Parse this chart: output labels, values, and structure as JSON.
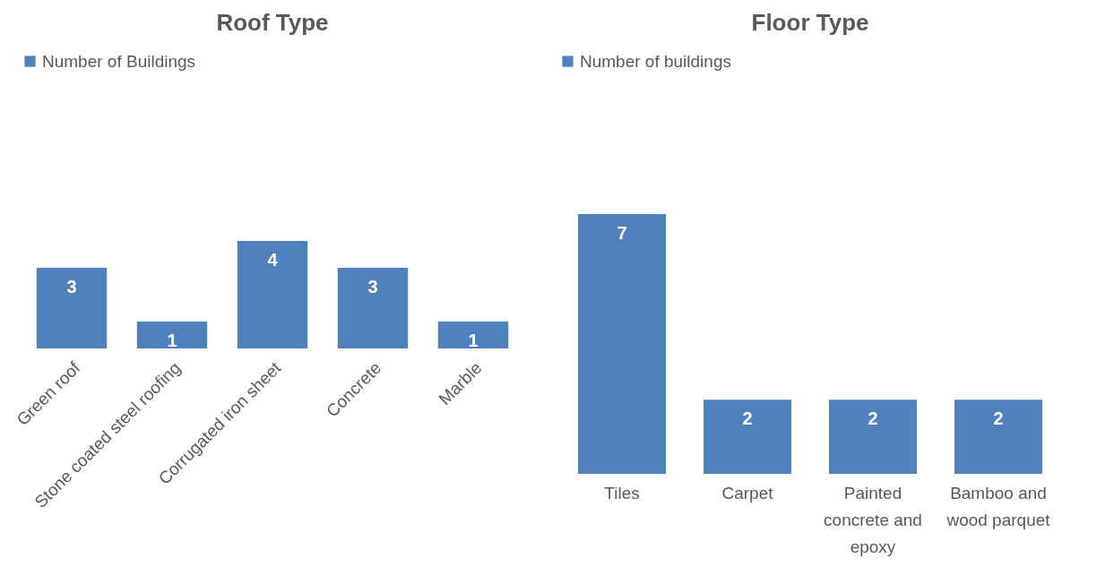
{
  "chart_data": [
    {
      "type": "bar",
      "title": "Roof Type",
      "categories": [
        "Green roof",
        "Stone coated steel roofing",
        "Corrugated iron sheet",
        "Concrete",
        "Marble"
      ],
      "series": [
        {
          "name": "Number of Buildings",
          "color": "#4f81bd",
          "values": [
            3,
            1,
            4,
            3,
            1
          ]
        }
      ],
      "data_labels": true,
      "legend": "top"
    },
    {
      "type": "bar",
      "title": "Floor Type",
      "categories": [
        "Tiles",
        "Carpet",
        "Painted concrete and epoxy",
        "Bamboo and wood parquet"
      ],
      "series": [
        {
          "name": "Number of buildings",
          "color": "#4f81bd",
          "values": [
            7,
            2,
            2,
            2
          ]
        }
      ],
      "data_labels": true,
      "legend": "top"
    }
  ]
}
